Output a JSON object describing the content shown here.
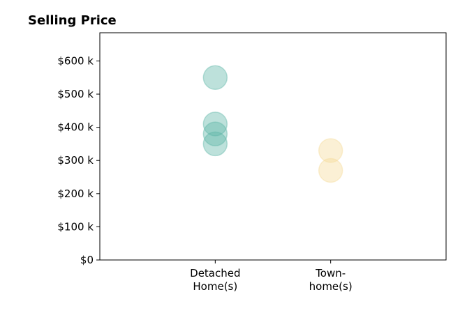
{
  "chart_data": {
    "type": "scatter",
    "title": "Selling Price",
    "xlabel": "",
    "ylabel": "",
    "categories": [
      [
        "Detached",
        "Home(s)"
      ],
      [
        "Town-",
        "home(s)"
      ]
    ],
    "ylim": [
      0,
      685000
    ],
    "yticks": [
      0,
      100000,
      200000,
      300000,
      400000,
      500000,
      600000
    ],
    "yticklabels": [
      "$0",
      "$100 k",
      "$200 k",
      "$300 k",
      "$400 k",
      "$500 k",
      "$600 k"
    ],
    "xlim": [
      -1,
      2
    ],
    "grid": false,
    "series": [
      {
        "category_index": 0,
        "color": "#5bb5a6",
        "values": [
          550000,
          410000,
          380000,
          350000
        ]
      },
      {
        "category_index": 1,
        "color": "#f5d995",
        "values": [
          330000,
          270000
        ]
      }
    ]
  }
}
